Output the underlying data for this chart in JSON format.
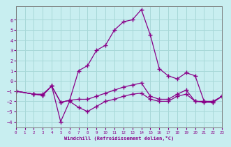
{
  "xlabel": "Windchill (Refroidissement éolien,°C)",
  "bg_color": "#c8eef0",
  "grid_color": "#a8d8d8",
  "line_color": "#880088",
  "xlim": [
    0,
    23
  ],
  "ylim": [
    -4.6,
    7.3
  ],
  "xticks": [
    0,
    1,
    2,
    3,
    4,
    5,
    6,
    7,
    8,
    9,
    10,
    11,
    12,
    13,
    14,
    15,
    16,
    17,
    18,
    19,
    20,
    21,
    22,
    23
  ],
  "yticks": [
    -4,
    -3,
    -2,
    -1,
    0,
    1,
    2,
    3,
    4,
    5,
    6
  ],
  "line1_x": [
    0,
    2,
    3,
    4,
    5,
    6,
    7,
    8,
    9,
    10,
    11,
    12,
    13,
    14,
    15,
    16,
    17,
    18,
    19,
    20,
    21,
    22,
    23
  ],
  "line1_y": [
    -1.0,
    -1.3,
    -1.3,
    -0.5,
    -2.1,
    -1.9,
    1.0,
    1.5,
    3.0,
    3.5,
    5.0,
    5.8,
    6.0,
    7.0,
    4.5,
    1.2,
    0.5,
    0.2,
    0.8,
    0.5,
    -2.0,
    -2.1,
    -1.5
  ],
  "line2_x": [
    0,
    2,
    3,
    4,
    5,
    6,
    7,
    8,
    9,
    10,
    11,
    12,
    13,
    14,
    15,
    16,
    17,
    18,
    19,
    20,
    21,
    22,
    23
  ],
  "line2_y": [
    -1.0,
    -1.3,
    -1.4,
    -0.5,
    -4.0,
    -2.0,
    -2.6,
    -3.0,
    -2.5,
    -2.0,
    -1.8,
    -1.5,
    -1.3,
    -1.2,
    -1.8,
    -2.0,
    -2.0,
    -1.5,
    -1.3,
    -2.0,
    -2.1,
    -2.1,
    -1.5
  ],
  "line3_x": [
    0,
    2,
    3,
    4,
    5,
    6,
    7,
    8,
    9,
    10,
    11,
    12,
    13,
    14,
    15,
    16,
    17,
    18,
    19,
    20,
    21,
    22,
    23
  ],
  "line3_y": [
    -1.0,
    -1.3,
    -1.4,
    -0.5,
    -2.1,
    -1.9,
    -1.8,
    -1.8,
    -1.5,
    -1.2,
    -0.9,
    -0.6,
    -0.4,
    -0.2,
    -1.5,
    -1.8,
    -1.8,
    -1.3,
    -0.9,
    -2.0,
    -2.0,
    -2.0,
    -1.5
  ]
}
